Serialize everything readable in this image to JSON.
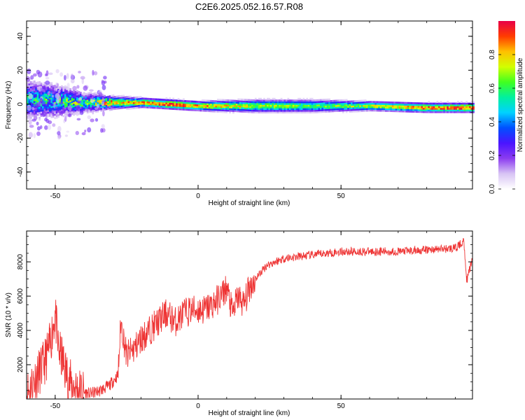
{
  "title": "C2E6.2025.052.16.57.R08",
  "chart_data": [
    {
      "type": "heatmap",
      "xlabel": "Height of straight line (km)",
      "ylabel": "Frequency (Hz)",
      "xlim": [
        -60,
        96
      ],
      "ylim": [
        -50,
        49
      ],
      "xticks": [
        -50,
        0,
        50
      ],
      "yticks": [
        -40,
        -20,
        0,
        20,
        40
      ],
      "colorbar": {
        "label": "Normalized spectral amplitude",
        "range": [
          0,
          1
        ],
        "ticks": [
          "0.0",
          "0.2",
          "0.4",
          "0.6",
          "0.8"
        ],
        "colormap": [
          "#ffffff",
          "#d8c4f4",
          "#8c3cf0",
          "#4a14ff",
          "#0050ff",
          "#00d2ff",
          "#00f0a0",
          "#40ff20",
          "#d2ff00",
          "#ffc000",
          "#ff3c00",
          "#e80048"
        ]
      },
      "ridge": {
        "x": [
          -60,
          -50,
          -40,
          -30,
          -20,
          -10,
          0,
          20,
          40,
          60,
          80,
          96
        ],
        "frequency_hz": [
          3,
          2,
          1,
          1,
          1,
          0,
          -1,
          -1,
          -1,
          -1,
          -2,
          -2
        ],
        "peak_amplitude": [
          0.45,
          0.5,
          0.55,
          0.75,
          0.85,
          0.95,
          0.85,
          0.7,
          0.6,
          0.7,
          0.9,
          0.95
        ],
        "half_width_hz": [
          12,
          10,
          6,
          4,
          3,
          3,
          3,
          4,
          4,
          3,
          3,
          3
        ]
      }
    },
    {
      "type": "line",
      "xlabel": "Height of straight line (km)",
      "ylabel": "SNR (10 * v/v)",
      "xlim": [
        -60,
        96
      ],
      "ylim": [
        0,
        9800
      ],
      "xticks": [
        -50,
        0,
        50
      ],
      "yticks": [
        2000,
        4000,
        6000,
        8000
      ],
      "color": "#ee3333",
      "x": [
        -60,
        -57,
        -54,
        -52,
        -50,
        -49,
        -47,
        -45,
        -42,
        -38,
        -34,
        -31,
        -28,
        -27,
        -25,
        -22,
        -20,
        -17,
        -14,
        -11,
        -8,
        -5,
        -2,
        2,
        5,
        8,
        10,
        12,
        14,
        16,
        18,
        20,
        24,
        30,
        40,
        50,
        60,
        70,
        80,
        90,
        93,
        94,
        96
      ],
      "y": [
        300,
        1200,
        2000,
        3000,
        5000,
        3000,
        2000,
        1000,
        500,
        300,
        500,
        800,
        1400,
        4500,
        2500,
        3000,
        3500,
        4000,
        4500,
        5000,
        4500,
        5000,
        5200,
        5200,
        5500,
        6000,
        6500,
        5000,
        6000,
        5500,
        6500,
        7000,
        7800,
        8200,
        8400,
        8600,
        8600,
        8600,
        8700,
        8800,
        9200,
        6900,
        8200
      ]
    }
  ]
}
